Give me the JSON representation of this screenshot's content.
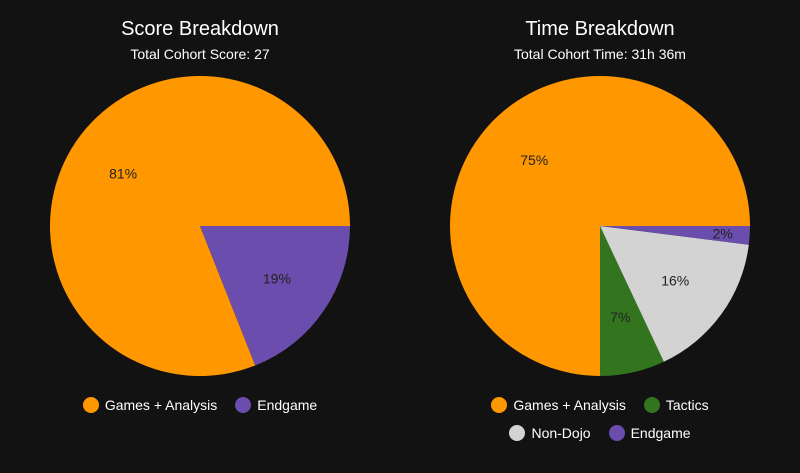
{
  "chart_data": [
    {
      "type": "pie",
      "title": "Score Breakdown",
      "subtitle": "Total Cohort Score: 27",
      "slices": [
        {
          "label": "Games + Analysis",
          "value": 81,
          "display": "81%",
          "color": "#ff9800"
        },
        {
          "label": "Endgame",
          "value": 19,
          "display": "19%",
          "color": "#6a4dad"
        }
      ],
      "legend_rows": [
        [
          "Games + Analysis",
          "Endgame"
        ]
      ]
    },
    {
      "type": "pie",
      "title": "Time Breakdown",
      "subtitle": "Total Cohort Time: 31h 36m",
      "slices": [
        {
          "label": "Games + Analysis",
          "value": 75,
          "display": "75%",
          "color": "#ff9800"
        },
        {
          "label": "Tactics",
          "value": 7,
          "display": "7%",
          "color": "#33751f"
        },
        {
          "label": "Non-Dojo",
          "value": 16,
          "display": "16%",
          "color": "#d3d3d3"
        },
        {
          "label": "Endgame",
          "value": 2,
          "display": "2%",
          "color": "#6a4dad"
        }
      ],
      "legend_rows": [
        [
          "Games + Analysis",
          "Tactics"
        ],
        [
          "Non-Dojo",
          "Endgame"
        ]
      ]
    }
  ]
}
